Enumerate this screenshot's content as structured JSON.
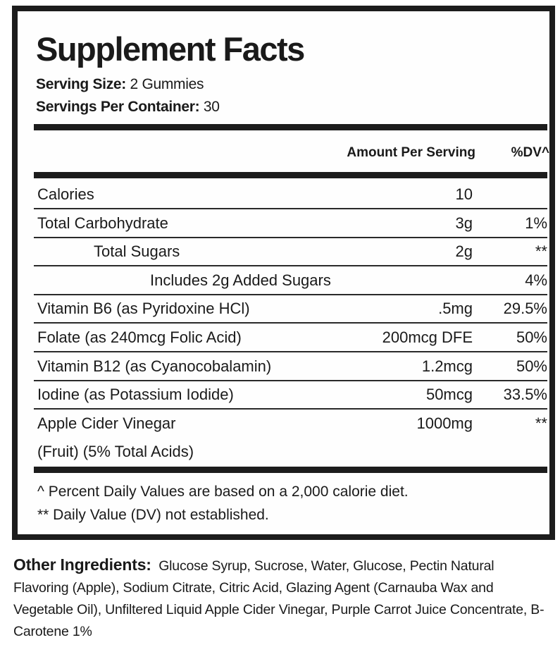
{
  "title": "Supplement Facts",
  "serving_size": {
    "label": "Serving Size:",
    "value": "2 Gummies"
  },
  "servings_per_container": {
    "label": "Servings Per Container:",
    "value": "30"
  },
  "headers": {
    "amount": "Amount Per Serving",
    "dv": "%DV^"
  },
  "rows": [
    {
      "name": "Calories",
      "amount": "10",
      "dv": ""
    },
    {
      "name": "Total Carbohydrate",
      "amount": "3g",
      "dv": "1%"
    },
    {
      "name": "Total Sugars",
      "amount": "2g",
      "dv": "**"
    },
    {
      "name": "Includes 2g Added Sugars",
      "amount": "",
      "dv": "4%"
    },
    {
      "name": "Vitamin B6 (as Pyridoxine HCl)",
      "amount": ".5mg",
      "dv": "29.5%"
    },
    {
      "name": "Folate (as 240mcg Folic Acid)",
      "amount": "200mcg DFE",
      "dv": "50%"
    },
    {
      "name": "Vitamin B12 (as Cyanocobalamin)",
      "amount": "1.2mcg",
      "dv": "50%"
    },
    {
      "name": "Iodine (as Potassium Iodide)",
      "amount": "50mcg",
      "dv": "33.5%"
    },
    {
      "name": "Apple Cider Vinegar",
      "name2": "(Fruit) (5% Total Acids)",
      "amount": "1000mg",
      "dv": "**"
    }
  ],
  "footnotes": [
    "^ Percent Daily Values are based on a 2,000 calorie diet.",
    "** Daily Value (DV) not established."
  ],
  "other_ingredients": {
    "label": "Other Ingredients:",
    "text": "Glucose Syrup, Sucrose, Water, Glucose, Pectin Natural Flavoring (Apple), Sodium Citrate, Citric Acid, Glazing Agent (Carnauba Wax and Vegetable Oil), Unfiltered Liquid Apple Cider Vinegar, Purple Carrot Juice Concentrate, B-Carotene 1%"
  }
}
